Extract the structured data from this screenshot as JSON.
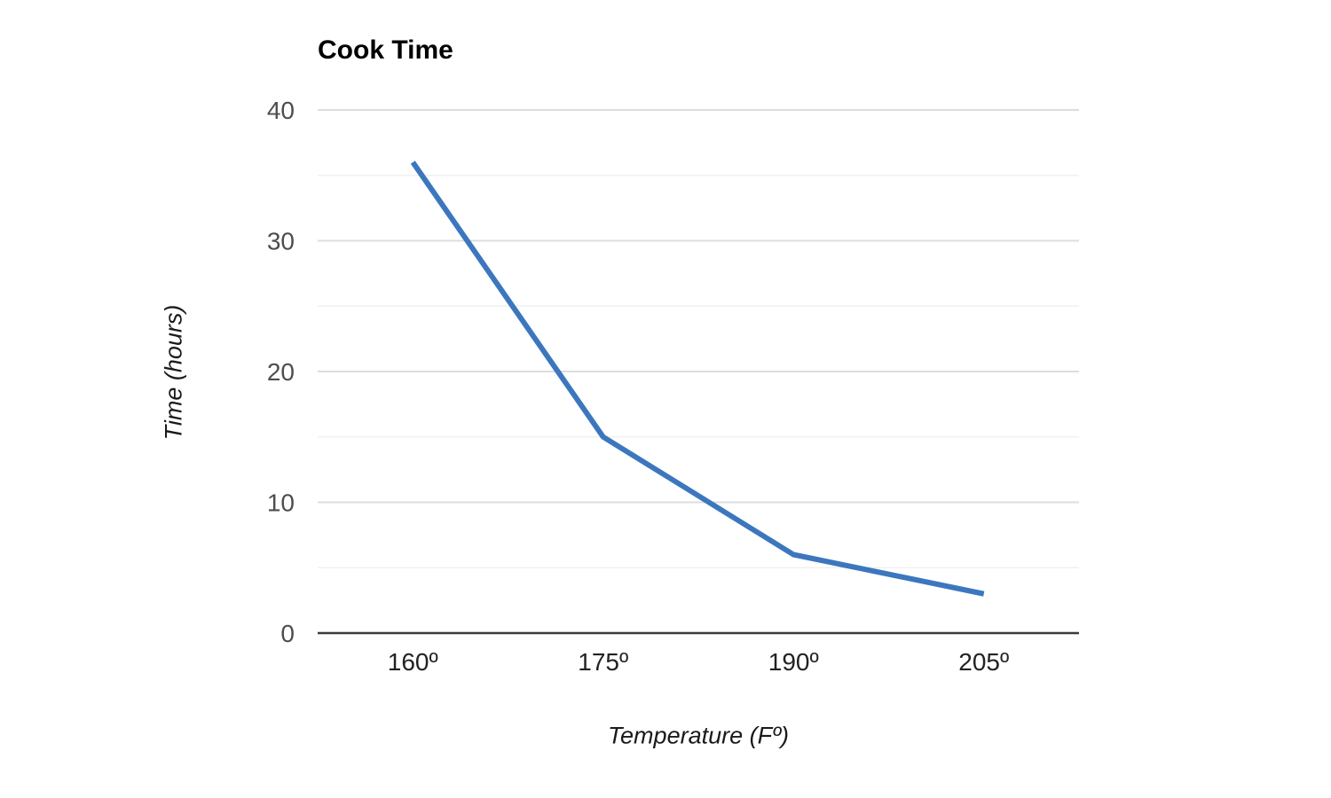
{
  "chart_data": {
    "type": "line",
    "title": "Cook Time",
    "xlabel": "Temperature (Fº)",
    "ylabel": "Time (hours)",
    "categories": [
      "160º",
      "175º",
      "190º",
      "205º"
    ],
    "series": [
      {
        "name": "Cook Time",
        "color": "#3c77be",
        "values": [
          36,
          15,
          6,
          3
        ]
      }
    ],
    "ylim": [
      0,
      40
    ],
    "yticks": [
      0,
      10,
      20,
      30,
      40
    ],
    "minor_yticks": [
      5,
      15,
      25,
      35
    ],
    "grid": true,
    "legend": "none",
    "colors": {
      "background": "#ffffff",
      "series_line": "#3c77be",
      "major_gridline": "#dddddd",
      "minor_gridline": "#f0f0f0",
      "axis_baseline": "#3a3a3a",
      "y_tick_label": "#4d4d4d",
      "x_tick_label": "#222222",
      "title": "#000000",
      "axis_title": "#1a1a1a"
    }
  }
}
